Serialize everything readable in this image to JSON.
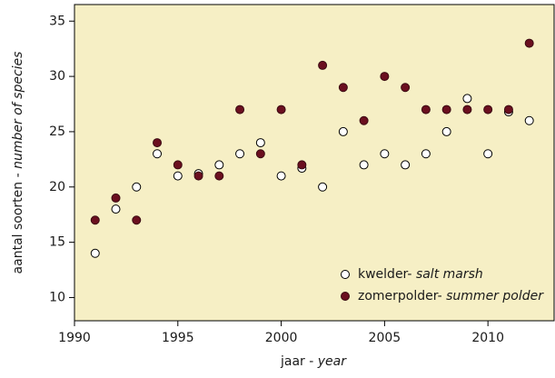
{
  "chart_data": {
    "type": "scatter",
    "xlabel": {
      "text": "jaar - ",
      "translation": "year"
    },
    "ylabel": {
      "text": "aantal soorten - ",
      "translation": "number of species"
    },
    "x": [
      1991,
      1992,
      1993,
      1994,
      1995,
      1996,
      1997,
      1998,
      1999,
      2000,
      2001,
      2002,
      2003,
      2004,
      2005,
      2006,
      2007,
      2008,
      2009,
      2010,
      2011,
      2012
    ],
    "series": [
      {
        "name": "kwelder- ",
        "name_translation": "salt marsh",
        "color": "#ffffff",
        "stroke": "#000000",
        "values": [
          14,
          18,
          20,
          23,
          21,
          21.2,
          22,
          23,
          24,
          21,
          21.7,
          20,
          25,
          22,
          23,
          22,
          23,
          25,
          28,
          23,
          26.8,
          26
        ]
      },
      {
        "name": "zomerpolder- ",
        "name_translation": "summer polder",
        "color": "#6b0f1f",
        "stroke": "#3a0a12",
        "values": [
          17,
          19,
          17,
          24,
          22,
          21,
          21,
          27,
          23,
          27,
          22,
          31,
          29,
          26,
          30,
          29,
          27,
          27,
          27,
          27,
          27,
          33
        ]
      }
    ],
    "xlim": [
      1990,
      2013.2
    ],
    "xticks": [
      1990,
      1995,
      2000,
      2005,
      2010
    ],
    "ylim": [
      7.9,
      36.5
    ],
    "yticks": [
      10,
      15,
      20,
      25,
      30,
      35
    ],
    "background": "#f6efc5",
    "legend": "lower right"
  }
}
